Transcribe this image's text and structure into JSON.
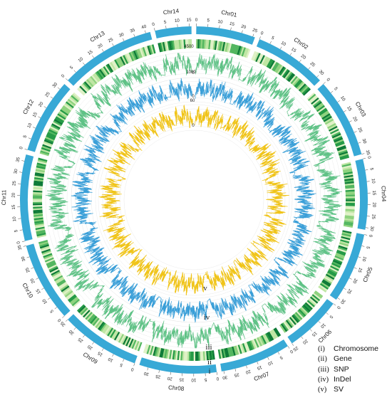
{
  "chromosomes": [
    {
      "name": "Chr01",
      "length": 26,
      "ticks": [
        "0",
        "5",
        "10",
        "15",
        "20",
        "25"
      ]
    },
    {
      "name": "Chr02",
      "length": 32,
      "ticks": [
        "0",
        "5",
        "10",
        "15",
        "20",
        "25",
        "30"
      ]
    },
    {
      "name": "Chr03",
      "length": 35,
      "ticks": [
        "0",
        "5",
        "10",
        "15",
        "20",
        "25",
        "30",
        "35"
      ]
    },
    {
      "name": "Chr04",
      "length": 31,
      "ticks": [
        "0",
        "5",
        "10",
        "15",
        "20",
        "25",
        "30"
      ]
    },
    {
      "name": "Chr05",
      "length": 31,
      "ticks": [
        "0",
        "5",
        "10",
        "15",
        "20",
        "25",
        "30"
      ]
    },
    {
      "name": "Chr06",
      "length": 25,
      "ticks": [
        "0",
        "5",
        "10",
        "15",
        "20",
        "25"
      ]
    },
    {
      "name": "Chr07",
      "length": 31,
      "ticks": [
        "0",
        "5",
        "10",
        "15",
        "20",
        "25",
        "30"
      ]
    },
    {
      "name": "Chr08",
      "length": 34,
      "ticks": [
        "0",
        "5",
        "10",
        "15",
        "20",
        "25",
        "30"
      ]
    },
    {
      "name": "Chr09",
      "length": 35,
      "ticks": [
        "0",
        "5",
        "10",
        "15",
        "20",
        "25",
        "30",
        "35"
      ]
    },
    {
      "name": "Chr10",
      "length": 35,
      "ticks": [
        "0",
        "5",
        "10",
        "15",
        "20",
        "25",
        "30",
        "35"
      ]
    },
    {
      "name": "Chr11",
      "length": 38,
      "ticks": [
        "0",
        "5",
        "10",
        "15",
        "20",
        "25",
        "30",
        "35"
      ]
    },
    {
      "name": "Chr12",
      "length": 33,
      "ticks": [
        "0",
        "5",
        "10",
        "15",
        "20",
        "25",
        "30"
      ]
    },
    {
      "name": "Chr13",
      "length": 42,
      "ticks": [
        "0",
        "5",
        "10",
        "15",
        "20",
        "25",
        "30",
        "35",
        "40"
      ]
    },
    {
      "name": "Chr14",
      "length": 16,
      "ticks": [
        "0",
        "5",
        "10",
        "15"
      ]
    }
  ],
  "tracks": {
    "snp": {
      "scale_top": "4500",
      "scale_bottom": "0",
      "color": "#5fc286"
    },
    "indel": {
      "scale_top": "1000",
      "scale_bottom": "0",
      "color": "#3a9fd8"
    },
    "sv": {
      "scale_top": "60",
      "scale_bottom": "0",
      "color": "#f0c419"
    }
  },
  "ring_numerals": [
    "i",
    "ii",
    "iii",
    "iv",
    "v"
  ],
  "legend": [
    {
      "num": "(i)",
      "label": "Chromosome"
    },
    {
      "num": "(ii)",
      "label": "Gene"
    },
    {
      "num": "(iii)",
      "label": "SNP"
    },
    {
      "num": "(iv)",
      "label": "InDel"
    },
    {
      "num": "(v)",
      "label": "SV"
    }
  ],
  "colors": {
    "chromosome": "#38a9d6",
    "gene_palette": [
      "#dff1c6",
      "#bfe6a4",
      "#8ed27e",
      "#52b65f",
      "#249a46",
      "#0d7a37"
    ]
  }
}
